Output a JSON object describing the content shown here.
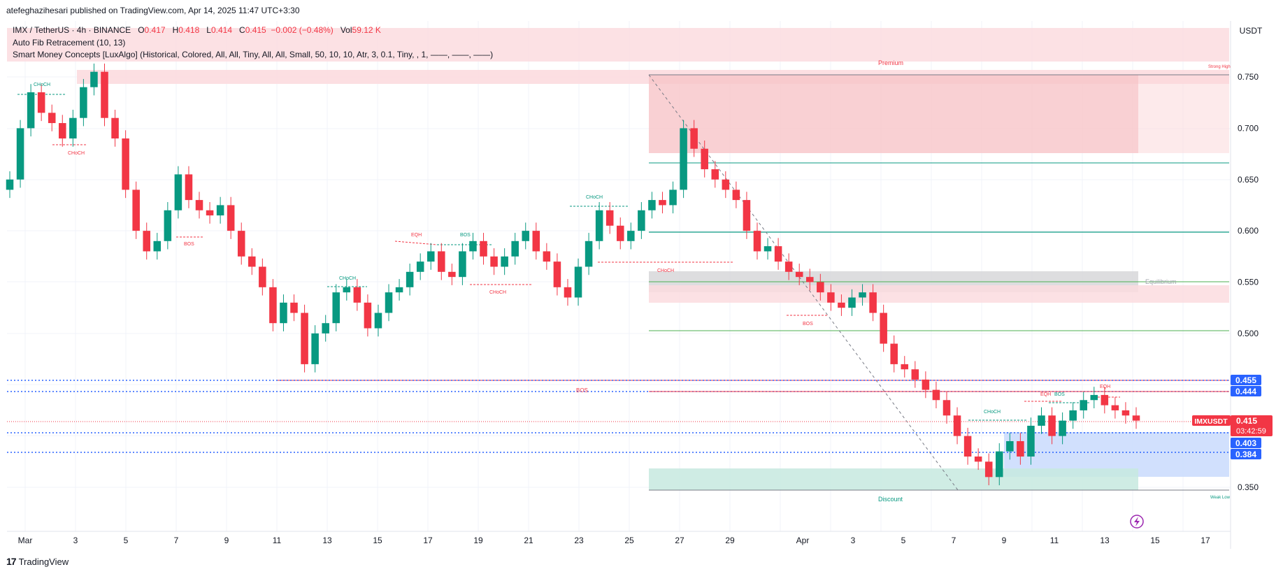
{
  "header": {
    "published": "atefeghazihesari published on TradingView.com, Apr 14, 2025 11:47 UTC+3:30"
  },
  "legend": {
    "symbol": "IMX / TetherUS · 4h · BINANCE",
    "o_label": "O",
    "o": "0.417",
    "h_label": "H",
    "h": "0.418",
    "l_label": "L",
    "l": "0.414",
    "c_label": "C",
    "c": "0.415",
    "change": "−0.002 (−0.48%)",
    "vol_label": "Vol",
    "vol": "59.12 K",
    "indicator1": "Auto Fib Retracement (10, 13)",
    "indicator2": "Smart Money Concepts [LuxAlgo] (Historical, Colored, All, All, Tiny, All, All, Small, 50, 10, 10, Atr, 3, 0.1, Tiny, , 1, ——, ——, ——)"
  },
  "currency_button": "USDT",
  "footer": {
    "brand": "TradingView"
  },
  "chart_data": {
    "type": "candlestick",
    "title": "IMX / TetherUS · 4h · BINANCE",
    "ylim": [
      0.305,
      0.77
    ],
    "y_ticks": [
      "0.750",
      "0.700",
      "0.650",
      "0.600",
      "0.550",
      "0.500",
      "0.350"
    ],
    "x_ticks": [
      "Mar",
      "3",
      "5",
      "7",
      "9",
      "11",
      "13",
      "15",
      "17",
      "19",
      "21",
      "23",
      "25",
      "27",
      "29",
      "Apr",
      "3",
      "5",
      "7",
      "9",
      "11",
      "13",
      "15",
      "17"
    ],
    "grid": true,
    "candles_close": [
      0.65,
      0.7,
      0.735,
      0.715,
      0.705,
      0.69,
      0.71,
      0.74,
      0.755,
      0.71,
      0.69,
      0.64,
      0.6,
      0.58,
      0.59,
      0.62,
      0.655,
      0.63,
      0.62,
      0.615,
      0.625,
      0.6,
      0.575,
      0.565,
      0.545,
      0.51,
      0.53,
      0.52,
      0.47,
      0.5,
      0.51,
      0.54,
      0.545,
      0.53,
      0.505,
      0.52,
      0.54,
      0.545,
      0.56,
      0.57,
      0.58,
      0.56,
      0.555,
      0.58,
      0.59,
      0.575,
      0.565,
      0.575,
      0.59,
      0.6,
      0.58,
      0.57,
      0.545,
      0.535,
      0.565,
      0.59,
      0.62,
      0.605,
      0.59,
      0.6,
      0.62,
      0.63,
      0.625,
      0.64,
      0.7,
      0.68,
      0.66,
      0.65,
      0.64,
      0.63,
      0.6,
      0.58,
      0.585,
      0.57,
      0.56,
      0.555,
      0.55,
      0.54,
      0.53,
      0.525,
      0.535,
      0.54,
      0.52,
      0.49,
      0.47,
      0.465,
      0.455,
      0.445,
      0.435,
      0.42,
      0.4,
      0.38,
      0.375,
      0.36,
      0.385,
      0.395,
      0.38,
      0.41,
      0.42,
      0.4,
      0.415,
      0.425,
      0.435,
      0.44,
      0.43,
      0.425,
      0.42,
      0.415
    ],
    "price_labels": [
      {
        "value": "0.455",
        "color": "#2962ff"
      },
      {
        "value": "0.444",
        "color": "#2962ff"
      },
      {
        "value": "0.415",
        "color": "#f23645"
      },
      {
        "value": "0.403",
        "color": "#2962ff"
      },
      {
        "value": "0.384",
        "color": "#2962ff"
      }
    ],
    "last_price_tag": {
      "symbol": "IMXUSDT",
      "price": "0.415",
      "countdown": "03:42:59"
    },
    "zone_labels": {
      "premium": "Premium",
      "equilibrium": "Equilibrium",
      "discount": "Discount",
      "strong_high": "Strong High",
      "weak_low": "Weak Low"
    },
    "structure_labels": [
      "CHoCH",
      "CHoCH",
      "BOS",
      "EQH",
      "BOS",
      "CHoCH",
      "CHoCH",
      "CHoCH",
      "CHoCH",
      "BOS",
      "BOS",
      "CHoCH",
      "EQH",
      "BOS",
      "EQH"
    ]
  }
}
